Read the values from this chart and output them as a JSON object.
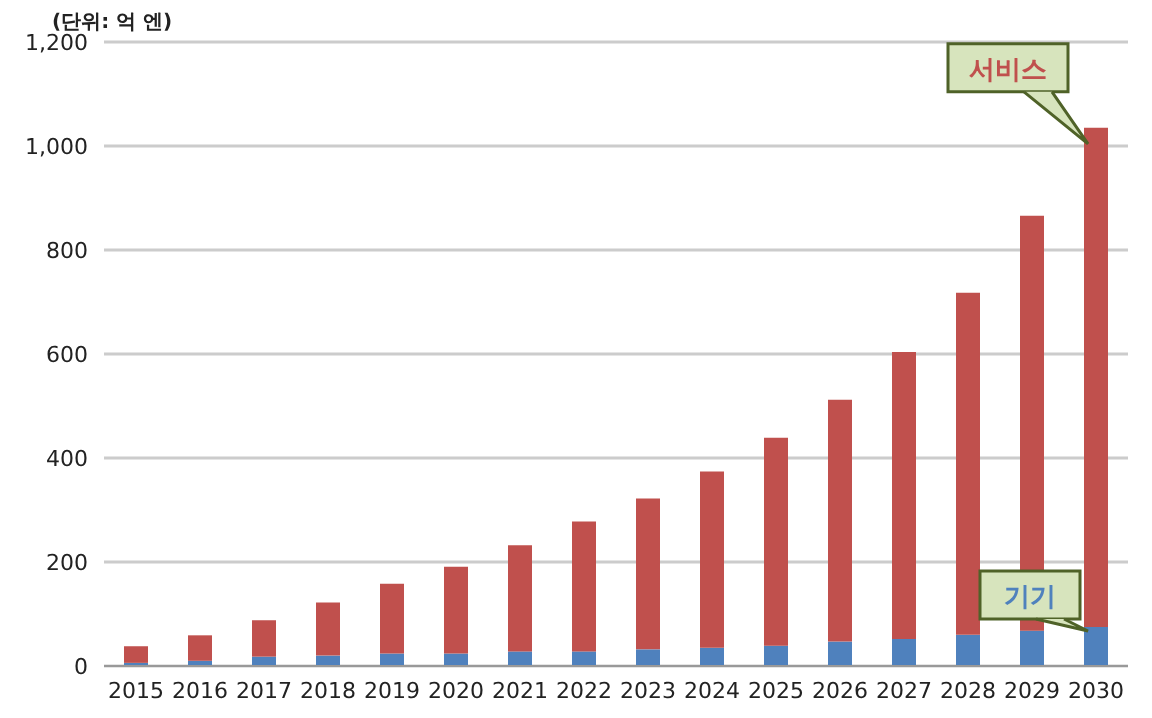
{
  "chart_data": {
    "type": "bar",
    "stacked": true,
    "annotations": [
      "(단위: 억 엔)"
    ],
    "categories": [
      "2015",
      "2016",
      "2017",
      "2018",
      "2019",
      "2020",
      "2021",
      "2022",
      "2023",
      "2024",
      "2025",
      "2026",
      "2027",
      "2028",
      "2029",
      "2030"
    ],
    "series": [
      {
        "name": "기기",
        "color": "#4f81bd",
        "values": [
          6,
          10,
          18,
          20,
          24,
          24,
          28,
          28,
          32,
          35,
          39,
          47,
          52,
          60,
          68,
          75
        ]
      },
      {
        "name": "서비스",
        "color": "#c0504d",
        "values": [
          32,
          49,
          70,
          102,
          134,
          167,
          204,
          250,
          290,
          339,
          400,
          465,
          552,
          658,
          798,
          960
        ]
      }
    ],
    "ylim": [
      0,
      1200
    ],
    "yticks": [
      0,
      200,
      400,
      600,
      800,
      {
        "value": 1000,
        "label": "1,000"
      },
      {
        "value": 1200,
        "label": "1,200"
      }
    ],
    "grid": "y",
    "legend": false
  }
}
